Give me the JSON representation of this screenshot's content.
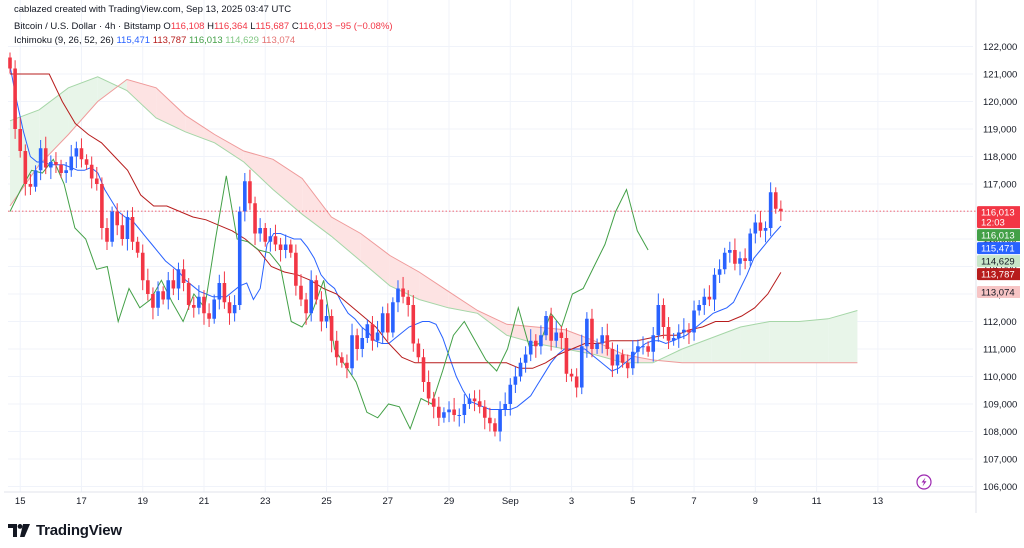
{
  "header": {
    "credit": "cablazed created with TradingView.com, Sep 13, 2025 03:47 UTC",
    "symbol": "Bitcoin / U.S. Dollar · 4h · Bitstamp",
    "ohlc": {
      "o_label": "O",
      "o": "116,108",
      "h_label": "H",
      "h": "116,364",
      "l_label": "L",
      "l": "115,687",
      "c_label": "C",
      "c": "116,013",
      "change": "−95 (−0.08%)"
    },
    "indicator": {
      "name": "Ichimoku (9, 26, 52, 26)",
      "v1": "115,471",
      "v2": "113,787",
      "v3": "116,013",
      "v4": "114,629",
      "v5": "113,074"
    }
  },
  "colors": {
    "up": "#2962ff",
    "down": "#f23645",
    "conversion": "#2962ff",
    "base": "#b71c1c",
    "lagging": "#43a047",
    "span_a": "#a5d6a7",
    "span_b": "#ef9a9a",
    "cloud_bull": "#e8f5e9",
    "cloud_bear": "#fde3e3"
  },
  "price_badges": [
    {
      "label": "116,013",
      "sub": "12:03",
      "value": 116013,
      "bg": "#f23645",
      "fg": "#ffffff"
    },
    {
      "label": "116,013",
      "value": 116013,
      "bg": "#43a047",
      "fg": "#ffffff"
    },
    {
      "label": "115,471",
      "value": 115471,
      "bg": "#2962ff",
      "fg": "#ffffff"
    },
    {
      "label": "114,629",
      "value": 114629,
      "bg": "#c8e6c9",
      "fg": "#131722"
    },
    {
      "label": "113,787",
      "value": 113787,
      "bg": "#b71c1c",
      "fg": "#ffffff"
    },
    {
      "label": "113,074",
      "value": 113074,
      "bg": "#f7c5c5",
      "fg": "#131722"
    }
  ],
  "footer": {
    "logo_text": "TradingView",
    "logo_icon": "tradingview-logo-icon"
  },
  "chart_data": {
    "type": "candlestick",
    "ylim": [
      105800,
      122600
    ],
    "yticks": [
      "122,000",
      "121,000",
      "120,000",
      "119,000",
      "118,000",
      "117,000",
      "116,000",
      "115,000",
      "114,000",
      "113,000",
      "112,000",
      "111,000",
      "110,000",
      "109,000",
      "108,000",
      "107,000",
      "106,000"
    ],
    "ytick_values": [
      122000,
      121000,
      120000,
      119000,
      118000,
      117000,
      116000,
      115000,
      114000,
      113000,
      112000,
      111000,
      110000,
      109000,
      108000,
      107000,
      106000
    ],
    "xticks": [
      "15",
      "17",
      "19",
      "21",
      "23",
      "25",
      "27",
      "29",
      "Sep",
      "3",
      "5",
      "7",
      "9",
      "11",
      "13"
    ],
    "xtick_index": [
      2,
      14,
      26,
      38,
      50,
      62,
      74,
      86,
      98,
      110,
      122,
      134,
      146,
      158,
      170
    ],
    "last_price": 116013,
    "candles_close": [
      121200,
      119000,
      118200,
      117000,
      116900,
      117500,
      118300,
      117600,
      117800,
      117700,
      117400,
      117500,
      118000,
      118300,
      117900,
      117700,
      117200,
      117000,
      115400,
      114900,
      116000,
      115500,
      115000,
      115800,
      114900,
      114500,
      113500,
      113000,
      112500,
      113100,
      112800,
      113500,
      113200,
      113900,
      113400,
      112600,
      112500,
      112900,
      112300,
      112100,
      112800,
      113400,
      112700,
      112300,
      112600,
      116000,
      117100,
      116300,
      115200,
      115400,
      114900,
      115100,
      114800,
      114600,
      114800,
      114500,
      113300,
      112800,
      112300,
      113500,
      112800,
      112000,
      112200,
      111300,
      110700,
      110500,
      110300,
      111500,
      111000,
      111400,
      111900,
      111300,
      111600,
      112300,
      111600,
      112700,
      113200,
      112900,
      112600,
      111200,
      110700,
      109800,
      109200,
      108900,
      108500,
      108700,
      108800,
      108600,
      108600,
      109000,
      109200,
      109100,
      108900,
      108500,
      108300,
      108000,
      108800,
      109000,
      109700,
      110000,
      110500,
      110800,
      111300,
      111100,
      111500,
      112200,
      111300,
      111600,
      111400,
      110100,
      110000,
      109600,
      111100,
      112100,
      111000,
      111200,
      111500,
      111000,
      110400,
      110800,
      110500,
      110300,
      110900,
      111100,
      111100,
      110900,
      111500,
      112600,
      111800,
      111300,
      111400,
      111600,
      111700,
      111600,
      112400,
      112600,
      112900,
      112800,
      113700,
      113900,
      114500,
      114600,
      114100,
      114300,
      114200,
      115200,
      115600,
      115300,
      115400,
      116700,
      116100,
      116013
    ],
    "conversion": [
      121300,
      120000,
      118900,
      118000,
      117800,
      117800,
      117700,
      117700,
      117700,
      117600,
      117500,
      117500,
      117600,
      117400,
      116800,
      116400,
      116000,
      115800,
      115700,
      115400,
      115100,
      114800,
      114500,
      114200,
      114000,
      113800,
      113500,
      113300,
      113100,
      113000,
      112900,
      112900,
      112900,
      113100,
      113300,
      113400,
      112800,
      113200,
      114800,
      115200,
      115200,
      115100,
      115000,
      115000,
      114700,
      114300,
      113700,
      113400,
      113200,
      112700,
      112300,
      112100,
      111800,
      111600,
      111300,
      111200,
      111200,
      111400,
      111600,
      111800,
      111900,
      112000,
      112000,
      111900,
      111400,
      110700,
      110000,
      109500,
      109100,
      109000,
      108900,
      108800,
      108800,
      108800,
      108800,
      108900,
      109100,
      109300,
      109700,
      110100,
      110500,
      110800,
      111000,
      111000,
      111000,
      111000,
      110800,
      110600,
      110400,
      110200,
      110300,
      110500,
      110700,
      111000,
      111200,
      111300,
      111300,
      111200,
      111300,
      111400,
      111500,
      111700,
      111900,
      112100,
      112300,
      112400,
      112500,
      112700,
      113200,
      113700,
      114300,
      114600,
      114900,
      115200,
      115471
    ],
    "base": [
      121000,
      121000,
      121000,
      121000,
      120000,
      119200,
      118800,
      118500,
      118000,
      117500,
      116600,
      116200,
      116200,
      116000,
      115800,
      115700,
      115500,
      115300,
      115000,
      114600,
      114000,
      113800,
      113700,
      113500,
      113200,
      113000,
      112600,
      112200,
      111800,
      111200,
      110700,
      110500,
      110500,
      110500,
      110500,
      110500,
      110500,
      110500,
      110500,
      110300,
      110300,
      110500,
      110800,
      111000,
      111200,
      111200,
      111300,
      111300,
      111300,
      111400,
      111500,
      111500,
      111700,
      111800,
      112000,
      112000,
      112200,
      112500,
      113000,
      113787
    ],
    "lagging": [
      116000,
      116800,
      117500,
      117400,
      117900,
      117000,
      115400,
      115000,
      113900,
      114000,
      112000,
      113200,
      112500,
      112800,
      113500,
      112700,
      112000,
      113000,
      112500,
      115000,
      117300,
      115000,
      114900,
      114600,
      114500,
      114000,
      112000,
      111800,
      112400,
      113500,
      111000,
      110400,
      109800,
      108700,
      108500,
      109000,
      108900,
      108100,
      109200,
      109000,
      110200,
      111500,
      112000,
      111300,
      110600,
      110200,
      111000,
      112500,
      111100,
      111200,
      112300,
      111800,
      113000,
      113200,
      114000,
      114800,
      116000,
      116800,
      115300,
      114600
    ],
    "span_a_cloud": [
      119300,
      119700,
      120500,
      120900,
      120400,
      119400,
      118900,
      118500,
      117800,
      116800,
      115900,
      115100,
      114200,
      113300,
      112800,
      112500,
      112300,
      111500,
      111200,
      111000,
      110800,
      110500,
      110500,
      111000,
      111400,
      111800,
      112000,
      112000,
      112100,
      112400
    ],
    "span_b_cloud": [
      116200,
      117700,
      118800,
      120000,
      120800,
      120500,
      119500,
      118800,
      118200,
      117900,
      117200,
      115800,
      115200,
      114400,
      113800,
      113100,
      112400,
      111900,
      111800,
      111700,
      111300,
      110800,
      110600,
      110500,
      110500,
      110500,
      110500,
      110500,
      110500,
      110500
    ]
  }
}
